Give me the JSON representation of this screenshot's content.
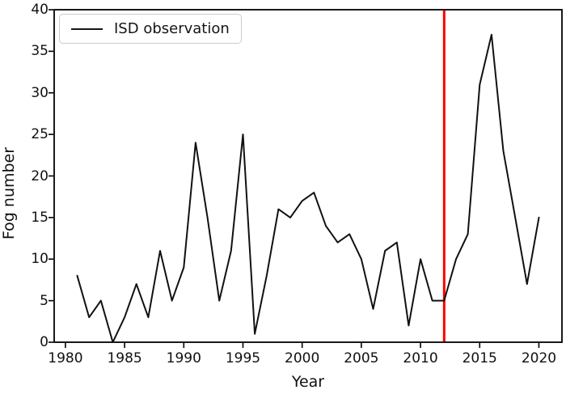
{
  "figure": {
    "background": "#ffffff",
    "text_color": "#111111"
  },
  "chart_data": {
    "type": "line",
    "title": "",
    "xlabel": "Year",
    "ylabel": "Fog number",
    "x": [
      1981,
      1982,
      1983,
      1984,
      1985,
      1986,
      1987,
      1988,
      1989,
      1990,
      1991,
      1992,
      1993,
      1994,
      1995,
      1996,
      1997,
      1998,
      1999,
      2000,
      2001,
      2002,
      2003,
      2004,
      2005,
      2006,
      2007,
      2008,
      2009,
      2010,
      2011,
      2012,
      2013,
      2014,
      2015,
      2016,
      2017,
      2018,
      2019,
      2020
    ],
    "series": [
      {
        "name": "ISD observation",
        "color": "#111111",
        "values": [
          8,
          3,
          5,
          0,
          3,
          7,
          3,
          11,
          5,
          9,
          24,
          15,
          5,
          11,
          25,
          1,
          8,
          16,
          15,
          17,
          18,
          14,
          12,
          13,
          10,
          4,
          11,
          12,
          2,
          10,
          5,
          5,
          10,
          13,
          31,
          37,
          23,
          15,
          7,
          15
        ]
      }
    ],
    "vline": {
      "x": 2012,
      "color": "#ff0000"
    },
    "xlim": [
      1979.05,
      2021.95
    ],
    "ylim": [
      0,
      40
    ],
    "x_ticks": [
      1980,
      1985,
      1990,
      1995,
      2000,
      2005,
      2010,
      2015,
      2020
    ],
    "y_ticks": [
      0,
      5,
      10,
      15,
      20,
      25,
      30,
      35,
      40
    ],
    "grid": false,
    "legend_position": "upper left"
  }
}
